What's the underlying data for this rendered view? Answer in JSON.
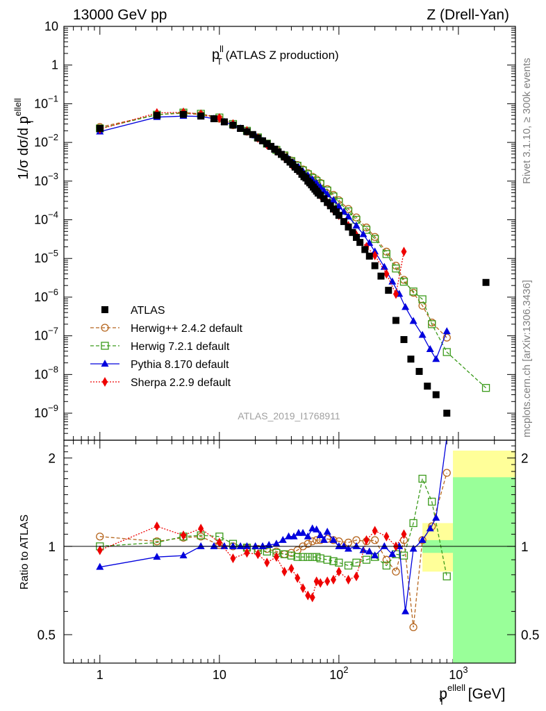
{
  "header": {
    "left": "13000 GeV pp",
    "right": "Z (Drell-Yan)"
  },
  "main_title": {
    "base": "p",
    "sup": "ll",
    "sub": "T",
    "rest": " (ATLAS Z production)"
  },
  "side_labels": {
    "rivet": "Rivet 3.1.10, ≥ 300k events",
    "mcplots": "mcplots.cern.ch [arXiv:1306.3436]"
  },
  "analysis_id": "ATLAS_2019_I1768911",
  "y_axis_label": {
    "main": "1/σ dσ/d p",
    "sup": "ellell",
    "sub": "T"
  },
  "ratio_axis_label": "Ratio to ATLAS",
  "x_axis_label": {
    "base": "p",
    "sup": "ellell",
    "sub": "T",
    "unit": " [GeV]"
  },
  "x_ticks": [
    {
      "value": 1,
      "base": "1",
      "exp": ""
    },
    {
      "value": 10,
      "base": "10",
      "exp": ""
    },
    {
      "value": 100,
      "base": "10",
      "exp": "2"
    },
    {
      "value": 1000,
      "base": "10",
      "exp": "3"
    }
  ],
  "y_ticks_main": [
    {
      "value": 10,
      "base": "10",
      "exp": ""
    },
    {
      "value": 1,
      "base": "1",
      "exp": ""
    },
    {
      "value": 0.1,
      "base": "10",
      "exp": "−1"
    },
    {
      "value": 0.01,
      "base": "10",
      "exp": "−2"
    },
    {
      "value": 0.001,
      "base": "10",
      "exp": "−3"
    },
    {
      "value": 0.0001,
      "base": "10",
      "exp": "−4"
    },
    {
      "value": 1e-05,
      "base": "10",
      "exp": "−5"
    },
    {
      "value": 1e-06,
      "base": "10",
      "exp": "−6"
    },
    {
      "value": 1e-07,
      "base": "10",
      "exp": "−7"
    },
    {
      "value": 1e-08,
      "base": "10",
      "exp": "−8"
    },
    {
      "value": 1e-09,
      "base": "10",
      "exp": "−9"
    }
  ],
  "y_ticks_ratio": [
    {
      "value": 2,
      "label": "2"
    },
    {
      "value": 1,
      "label": "1"
    },
    {
      "value": 0.5,
      "label": "0.5"
    }
  ],
  "colors": {
    "atlas": "#000000",
    "herwigpp": "#b5651d",
    "herwig7": "#3a9a1a",
    "pythia": "#0000dd",
    "sherpa": "#ee0000",
    "band_yellow": "#ffff99",
    "band_green": "#99ff99"
  },
  "chart_data": {
    "type": "scatter",
    "log_x": true,
    "log_y_main": true,
    "log_y_ratio": true,
    "xlim": [
      0.5,
      3000
    ],
    "ylim_main": [
      2e-10,
      10
    ],
    "ylim_ratio": [
      0.4,
      2.3
    ],
    "legend_position": "bottom-left",
    "series": [
      {
        "name": "ATLAS",
        "style": "data",
        "x": [
          1,
          3,
          5,
          7,
          9,
          11,
          13,
          15,
          17,
          19,
          21,
          23,
          25,
          27,
          29,
          31,
          33,
          35,
          37,
          39,
          41,
          43,
          45,
          47,
          49,
          51,
          53,
          55,
          57,
          59,
          61,
          63,
          65,
          67,
          70,
          75,
          80,
          85,
          90,
          95,
          100,
          110,
          120,
          130,
          140,
          150,
          165,
          180,
          200,
          225,
          260,
          300,
          350,
          400,
          470,
          550,
          650,
          800,
          1700
        ],
        "y": [
          0.023,
          0.05,
          0.053,
          0.048,
          0.041,
          0.034,
          0.028,
          0.023,
          0.019,
          0.016,
          0.013,
          0.011,
          0.0093,
          0.0079,
          0.0067,
          0.0057,
          0.0049,
          0.0042,
          0.0036,
          0.0031,
          0.0027,
          0.0023,
          0.002,
          0.0018,
          0.0015,
          0.0013,
          0.0012,
          0.001,
          0.0009,
          0.0008,
          0.0007,
          0.00062,
          0.00055,
          0.00049,
          0.00043,
          0.00035,
          0.00028,
          0.00023,
          0.00019,
          0.00016,
          0.00013,
          9e-05,
          6.5e-05,
          4.7e-05,
          3.5e-05,
          2.6e-05,
          1.7e-05,
          1.15e-05,
          6.5e-06,
          3.5e-06,
          1.5e-06,
          2.5e-07,
          8e-08,
          2.5e-08,
          1.2e-08,
          5e-09,
          3e-09,
          1e-09,
          2.4e-06
        ]
      },
      {
        "name": "Herwig++ 2.4.2 default",
        "style": "dashed-circle",
        "x": [
          1,
          3,
          5,
          7,
          10,
          13,
          17,
          21,
          25,
          30,
          35,
          40,
          45,
          50,
          55,
          60,
          65,
          70,
          80,
          90,
          100,
          120,
          140,
          170,
          200,
          250,
          300,
          350,
          420,
          500,
          600,
          800
        ],
        "y": [
          0.025,
          0.052,
          0.057,
          0.052,
          0.041,
          0.028,
          0.019,
          0.013,
          0.0092,
          0.0063,
          0.0046,
          0.0034,
          0.0026,
          0.002,
          0.0016,
          0.0013,
          0.0011,
          0.0009,
          0.00062,
          0.00044,
          0.00032,
          0.00019,
          0.000115,
          6.3e-05,
          3.6e-05,
          1.5e-05,
          6.5e-06,
          2.8e-06,
          1.3e-06,
          6e-07,
          2.2e-07,
          9e-08
        ],
        "ratio": [
          1.08,
          1.04,
          1.07,
          1.08,
          1.01,
          1.0,
          0.99,
          0.98,
          0.98,
          0.96,
          0.94,
          0.95,
          0.97,
          1.0,
          1.02,
          1.04,
          1.05,
          1.05,
          1.06,
          1.05,
          1.04,
          1.03,
          1.05,
          1.04,
          1.05,
          0.9,
          0.82,
          1.05,
          0.53,
          1.05,
          1.17,
          1.78
        ]
      },
      {
        "name": "Herwig 7.2.1 default",
        "style": "dashed-square",
        "x": [
          1,
          3,
          5,
          7,
          10,
          13,
          17,
          21,
          25,
          30,
          35,
          40,
          45,
          50,
          55,
          60,
          65,
          70,
          80,
          90,
          100,
          120,
          140,
          170,
          200,
          250,
          300,
          350,
          420,
          500,
          600,
          800,
          1700
        ],
        "y": [
          0.023,
          0.052,
          0.059,
          0.055,
          0.044,
          0.03,
          0.02,
          0.0135,
          0.0093,
          0.0064,
          0.0046,
          0.0033,
          0.0025,
          0.0019,
          0.0015,
          0.0012,
          0.001,
          0.00085,
          0.00057,
          0.0004,
          0.00029,
          0.000165,
          0.0001,
          5.5e-05,
          3.2e-05,
          1.3e-05,
          5.5e-06,
          2.5e-06,
          1.4e-06,
          8.8e-07,
          2e-07,
          3.8e-08,
          4.5e-09
        ],
        "ratio": [
          1.0,
          1.03,
          1.08,
          1.09,
          1.08,
          1.02,
          0.99,
          0.97,
          0.96,
          0.95,
          0.94,
          0.93,
          0.92,
          0.92,
          0.92,
          0.92,
          0.92,
          0.91,
          0.9,
          0.89,
          0.88,
          0.86,
          0.88,
          0.9,
          0.92,
          0.86,
          0.94,
          0.93,
          1.2,
          1.7,
          1.42,
          0.79
        ]
      },
      {
        "name": "Pythia 8.170 default",
        "style": "solid-triangle",
        "x": [
          1,
          3,
          5,
          7,
          9,
          11,
          13,
          15,
          17,
          20,
          23,
          26,
          30,
          34,
          38,
          42,
          46,
          50,
          55,
          60,
          65,
          70,
          75,
          80,
          90,
          100,
          110,
          120,
          140,
          160,
          180,
          200,
          240,
          280,
          320,
          360,
          420,
          500,
          580,
          650,
          800
        ],
        "y": [
          0.019,
          0.045,
          0.048,
          0.047,
          0.041,
          0.034,
          0.028,
          0.023,
          0.019,
          0.015,
          0.011,
          0.0085,
          0.0064,
          0.0048,
          0.0037,
          0.0029,
          0.0023,
          0.0018,
          0.0014,
          0.0011,
          0.00088,
          0.0007,
          0.00056,
          0.00045,
          0.00032,
          0.00022,
          0.00016,
          0.00012,
          7e-05,
          4.2e-05,
          2.5e-05,
          1.5e-05,
          6e-06,
          2.5e-06,
          1.2e-06,
          5.5e-07,
          2.4e-07,
          1.05e-07,
          4.5e-08,
          2.5e-08,
          1.3e-07
        ],
        "ratio": [
          0.85,
          0.92,
          0.93,
          1.0,
          1.0,
          1.0,
          1.0,
          1.0,
          1.0,
          1.0,
          1.0,
          1.01,
          1.02,
          1.05,
          1.08,
          1.08,
          1.11,
          1.11,
          1.08,
          1.15,
          1.14,
          1.09,
          1.05,
          1.12,
          1.05,
          1.0,
          1.0,
          0.98,
          1.0,
          0.97,
          0.96,
          0.93,
          1.0,
          0.94,
          1.0,
          0.6,
          0.98,
          1.05,
          1.15,
          1.25,
          2.35
        ]
      },
      {
        "name": "Sherpa 2.2.9 default",
        "style": "dotted-diamond",
        "x": [
          1,
          3,
          5,
          7,
          10,
          13,
          17,
          21,
          25,
          30,
          35,
          40,
          45,
          50,
          55,
          60,
          65,
          70,
          80,
          90,
          100,
          120,
          140,
          170,
          200,
          250,
          300,
          350
        ],
        "y": [
          0.022,
          0.058,
          0.06,
          0.054,
          0.043,
          0.03,
          0.02,
          0.013,
          0.0087,
          0.006,
          0.0041,
          0.0027,
          0.0019,
          0.0014,
          0.00098,
          0.00073,
          0.00056,
          0.00043,
          0.00028,
          0.00018,
          0.00013,
          7e-05,
          4e-05,
          2e-05,
          1.2e-05,
          4e-06,
          1.2e-06,
          1.5e-05
        ],
        "ratio": [
          0.97,
          1.17,
          1.09,
          1.15,
          1.03,
          0.91,
          0.95,
          0.94,
          0.88,
          0.92,
          0.82,
          0.84,
          0.78,
          0.72,
          0.68,
          0.67,
          0.76,
          0.75,
          0.76,
          0.77,
          0.82,
          0.77,
          0.79,
          1.05,
          1.13,
          1.08,
          1.0,
          1.1
        ]
      }
    ],
    "ratio_bands": [
      {
        "x0": 500,
        "x1": 900,
        "green_lo": 0.95,
        "green_hi": 1.05,
        "yellow_lo": 0.82,
        "yellow_hi": 1.2
      },
      {
        "x0": 900,
        "x1": 3000,
        "green_lo": 0.4,
        "green_hi": 1.72,
        "yellow_lo": 0.4,
        "yellow_hi": 2.12
      }
    ]
  },
  "legend": [
    {
      "label": "ATLAS",
      "series_index": 0
    },
    {
      "label": "Herwig++ 2.4.2 default",
      "series_index": 1
    },
    {
      "label": "Herwig 7.2.1 default",
      "series_index": 2
    },
    {
      "label": "Pythia 8.170 default",
      "series_index": 3
    },
    {
      "label": "Sherpa 2.2.9 default",
      "series_index": 4
    }
  ]
}
